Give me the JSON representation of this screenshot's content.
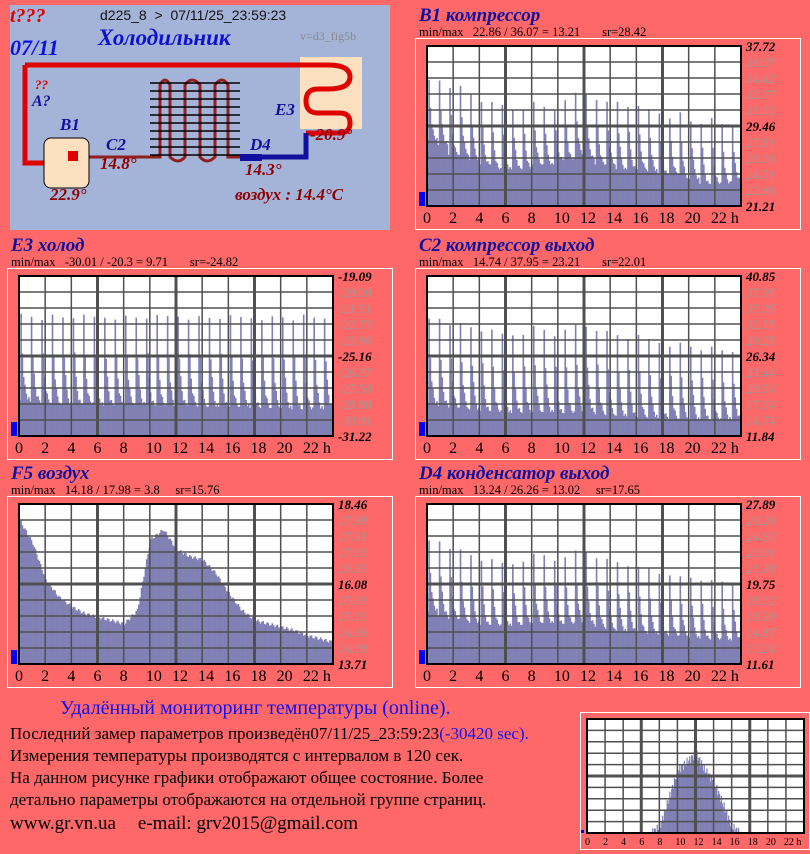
{
  "header": {
    "status": "t???",
    "date": "07/11",
    "device": "d225_8  >  07/11/25_23:59:23",
    "title": "Холодильник",
    "version": "v=d3_fig5b"
  },
  "diagram": {
    "unknown": "??",
    "a_label": "A?",
    "b1": "B1",
    "b1_value": "22.9°",
    "c2": "C2",
    "c2_value": "14.8°",
    "d4": "D4",
    "d4_value": "14.3°",
    "e3": "E3",
    "e3_value": "-20.9°",
    "air": "воздух : 14.4°C"
  },
  "footer": {
    "heading": "Удалённый мониторинг температуры (online).",
    "last_prefix": "Последний замер параметров произведён",
    "last_time": "07/11/25_23:59:23",
    "last_delta": "(-30420 sec).",
    "line2": "Измерения температуры  производятся с интервалом в 120 сек.",
    "line3": "На данном рисунке графики отображают общее состояние. Более",
    "line4": "детально параметры отображаются на отдельной группе страниц.",
    "site": "www.gr.vn.ua",
    "email": "e-mail: grv2015@gmail.com"
  },
  "colors": {
    "bg": "#ff6868",
    "bar": "#8080b4",
    "title": "#1010a0"
  },
  "chart_data": [
    {
      "type": "area",
      "id": "b1",
      "title": "B1 компрессор",
      "minmax": "min/max   22.86 / 36.07 = 13.21       sr=28.42",
      "yticks": [
        "37.72",
        "36.07",
        "34.42",
        "32.77",
        "31.12",
        "29.46",
        "27.81",
        "26.16",
        "24.51",
        "22.86",
        "21.21"
      ],
      "ylim": [
        21.21,
        37.72
      ],
      "xticks": [
        "0",
        "2",
        "4",
        "6",
        "8",
        "10",
        "12",
        "14",
        "16",
        "18",
        "20",
        "22 h"
      ],
      "xlim": [
        0,
        24
      ],
      "pattern": "cyclic",
      "peaks": [
        35.8,
        36.0,
        35.5,
        35.3,
        34.5,
        33.8,
        33.5,
        33.3,
        32.8,
        33.0,
        33.5,
        33.0,
        32.5,
        33.5,
        34.5,
        34.6,
        34.2,
        33.5,
        33.8,
        33.3,
        33.0,
        32.8,
        32.5,
        32.0,
        32.5,
        31.5,
        31.5,
        31.8,
        31.2,
        31.0
      ],
      "troughs": [
        28.0,
        27.5,
        26.5,
        26.5,
        26.0,
        25.5,
        25.0,
        25.0,
        25.0,
        25.0,
        25.5,
        25.5,
        26.0,
        26.0,
        26.5,
        26.0,
        25.5,
        25.5,
        25.0,
        25.0,
        25.0,
        24.8,
        24.5,
        24.5,
        24.0,
        24.0,
        23.5,
        23.5,
        23.5,
        23.8
      ]
    },
    {
      "type": "area",
      "id": "e3",
      "title": "E3 холод",
      "minmax": "min/max   -30.01 / -20.3 = 9.71       sr=-24.82",
      "yticks": [
        "-19.09",
        "-20.30",
        "-21.51",
        "-22.73",
        "-23.94",
        "-25.16",
        "-26.37",
        "-27.58",
        "-28.80",
        "-30.01",
        "-31.22"
      ],
      "ylim": [
        -31.22,
        -19.09
      ],
      "xticks": [
        "0",
        "2",
        "4",
        "6",
        "8",
        "10",
        "12",
        "14",
        "16",
        "18",
        "20",
        "22 h"
      ],
      "xlim": [
        0,
        24
      ],
      "pattern": "cyclic",
      "peaks": [
        -20.3,
        -20.4,
        -20.5,
        -20.4,
        -20.5,
        -20.4,
        -20.5,
        -20.5,
        -20.4,
        -20.4,
        -20.5,
        -20.5,
        -20.4,
        -20.5,
        -20.4,
        -20.3,
        -20.4,
        -20.5,
        -20.5,
        -20.4,
        -20.5,
        -20.5,
        -20.4,
        -20.4,
        -20.5,
        -20.4,
        -20.5,
        -20.4,
        -20.5,
        -20.4
      ],
      "troughs": [
        -28.5,
        -28.6,
        -28.7,
        -28.8,
        -28.8,
        -28.8,
        -28.8,
        -28.9,
        -28.9,
        -28.9,
        -28.8,
        -28.8,
        -28.9,
        -28.9,
        -29.0,
        -28.9,
        -28.9,
        -29.0,
        -29.0,
        -29.0,
        -29.0,
        -29.0,
        -29.1,
        -29.1,
        -29.1,
        -29.1,
        -29.2,
        -29.2,
        -29.2,
        -29.2
      ]
    },
    {
      "type": "area",
      "id": "c2",
      "title": "C2 компрессор выход",
      "minmax": "min/max   14.74 / 37.95 = 23.21       sr=22.01",
      "yticks": [
        "40.85",
        "37.95",
        "35.05",
        "32.15",
        "29.25",
        "26.34",
        "23.44",
        "20.54",
        "17.64",
        "14.74",
        "11.84"
      ],
      "ylim": [
        11.84,
        40.85
      ],
      "xticks": [
        "0",
        "2",
        "4",
        "6",
        "8",
        "10",
        "12",
        "14",
        "16",
        "18",
        "20",
        "22 h"
      ],
      "xlim": [
        0,
        24
      ],
      "pattern": "cyclic",
      "peaks": [
        37.0,
        37.5,
        36.5,
        36.0,
        35.5,
        35.0,
        34.5,
        34.0,
        34.0,
        34.5,
        35.5,
        35.0,
        34.0,
        34.5,
        36.0,
        36.0,
        35.5,
        34.5,
        34.0,
        33.5,
        33.5,
        33.0,
        32.5,
        32.0,
        32.0,
        31.5,
        31.0,
        31.0,
        30.5,
        30.5
      ],
      "troughs": [
        17.6,
        17.3,
        17.0,
        16.8,
        16.6,
        16.4,
        16.2,
        16.0,
        16.0,
        16.0,
        16.2,
        16.2,
        16.0,
        16.0,
        16.2,
        16.0,
        15.8,
        15.6,
        15.5,
        15.4,
        15.3,
        15.2,
        15.1,
        15.0,
        15.0,
        14.9,
        14.9,
        14.8,
        14.8,
        14.8
      ]
    },
    {
      "type": "area",
      "id": "f5",
      "title": "F5 воздух",
      "minmax": "min/max   14.18 / 17.98 = 3.8     sr=15.76",
      "yticks": [
        "18.46",
        "17.98",
        "17.51",
        "17.03",
        "16.55",
        "16.08",
        "15.61",
        "15.13",
        "14.66",
        "14.18",
        "13.71"
      ],
      "ylim": [
        13.71,
        18.46
      ],
      "xticks": [
        "0",
        "2",
        "4",
        "6",
        "8",
        "10",
        "12",
        "14",
        "16",
        "18",
        "20",
        "22 h"
      ],
      "xlim": [
        0,
        24
      ],
      "pattern": "smooth",
      "hourly": [
        17.98,
        17.3,
        16.2,
        15.7,
        15.4,
        15.2,
        15.1,
        15.0,
        14.9,
        15.3,
        17.4,
        17.7,
        17.1,
        16.9,
        16.8,
        16.4,
        15.8,
        15.3,
        15.0,
        14.9,
        14.8,
        14.7,
        14.55,
        14.45,
        14.35
      ]
    },
    {
      "type": "area",
      "id": "d4",
      "title": "D4 конденсатор выход",
      "minmax": "min/max   13.24 / 26.26 = 13.02     sr=17.65",
      "yticks": [
        "27.89",
        "26.26",
        "24.63",
        "23.01",
        "21.38",
        "19.75",
        "18.12",
        "16.50",
        "14.87",
        "13.24",
        "11.61"
      ],
      "ylim": [
        11.61,
        27.89
      ],
      "xticks": [
        "0",
        "2",
        "4",
        "6",
        "8",
        "10",
        "12",
        "14",
        "16",
        "18",
        "20",
        "22 h"
      ],
      "xlim": [
        0,
        24
      ],
      "pattern": "cyclic",
      "peaks": [
        26.0,
        26.2,
        25.5,
        25.0,
        24.5,
        24.0,
        23.8,
        23.5,
        23.5,
        24.0,
        24.5,
        24.5,
        24.0,
        24.0,
        25.0,
        25.0,
        24.5,
        24.0,
        23.8,
        23.5,
        23.0,
        23.0,
        22.5,
        22.5,
        22.0,
        22.0,
        21.8,
        21.5,
        21.5,
        21.5
      ],
      "troughs": [
        17.0,
        16.5,
        16.2,
        16.0,
        15.8,
        15.6,
        15.5,
        15.5,
        15.5,
        15.6,
        15.8,
        15.8,
        15.7,
        15.7,
        15.8,
        15.6,
        15.4,
        15.2,
        15.0,
        14.9,
        14.8,
        14.7,
        14.6,
        14.5,
        14.4,
        14.3,
        14.2,
        14.1,
        14.0,
        14.0
      ]
    },
    {
      "type": "area",
      "id": "mini",
      "title": "",
      "xticks": [
        "0",
        "2",
        "4",
        "6",
        "8",
        "10",
        "12",
        "14",
        "16",
        "18",
        "20",
        "22 h"
      ],
      "xlim": [
        0,
        24
      ],
      "ylim": [
        0,
        1
      ],
      "pattern": "smooth",
      "hourly": [
        0,
        0,
        0,
        0,
        0,
        0,
        0,
        0,
        0.05,
        0.3,
        0.55,
        0.62,
        0.7,
        0.55,
        0.45,
        0.25,
        0.05,
        0,
        0,
        0,
        0,
        0,
        0,
        0,
        0
      ]
    }
  ]
}
